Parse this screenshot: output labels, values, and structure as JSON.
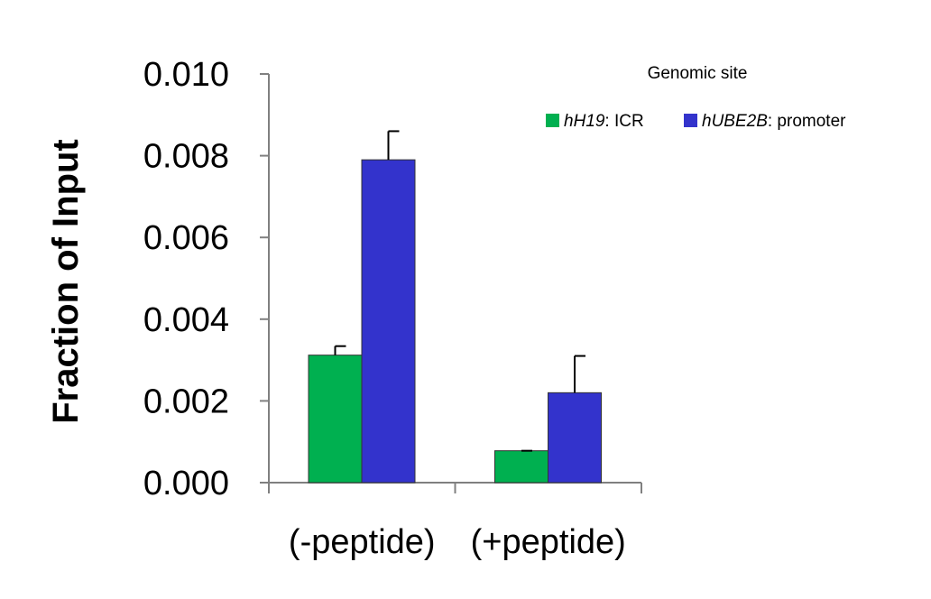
{
  "chart_data": {
    "type": "bar",
    "categories": [
      "(-peptide)",
      "(+peptide)"
    ],
    "series": [
      {
        "name": "hH19: ICR",
        "name_italic": "hH19",
        "name_rest": ": ICR",
        "color": "#00b050",
        "values": [
          0.00312,
          0.00078
        ],
        "errors": [
          0.00022,
          0.0
        ]
      },
      {
        "name": "hUBE2B: promoter",
        "name_italic": "hUBE2B",
        "name_rest": ": promoter",
        "color": "#3333cc",
        "values": [
          0.0079,
          0.0022
        ],
        "errors": [
          0.0007,
          0.0009
        ]
      }
    ],
    "ylabel": "Fraction  of  Input",
    "xlabel": "",
    "ylim": [
      0,
      0.01
    ],
    "yticks": [
      "0.000",
      "0.002",
      "0.004",
      "0.006",
      "0.008",
      "0.010"
    ],
    "legend_title": "Genomic site",
    "legend_position": "top-right",
    "grid": false
  }
}
